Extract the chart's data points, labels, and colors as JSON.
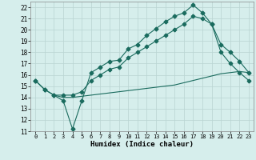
{
  "title": "",
  "xlabel": "Humidex (Indice chaleur)",
  "ylabel": "",
  "bg_color": "#d6eeec",
  "line_color": "#1a6b5e",
  "grid_color": "#b8d4d2",
  "xlim": [
    -0.5,
    23.5
  ],
  "ylim": [
    11,
    22.5
  ],
  "yticks": [
    11,
    12,
    13,
    14,
    15,
    16,
    17,
    18,
    19,
    20,
    21,
    22
  ],
  "xticks": [
    0,
    1,
    2,
    3,
    4,
    5,
    6,
    7,
    8,
    9,
    10,
    11,
    12,
    13,
    14,
    15,
    16,
    17,
    18,
    19,
    20,
    21,
    22,
    23
  ],
  "series": [
    {
      "x": [
        0,
        1,
        2,
        3,
        4,
        5,
        6,
        7,
        8,
        9,
        10,
        11,
        12,
        13,
        14,
        15,
        16,
        17,
        18,
        19,
        20,
        21,
        22,
        23
      ],
      "y": [
        15.5,
        14.7,
        14.2,
        13.7,
        11.2,
        13.7,
        16.2,
        16.7,
        17.2,
        17.3,
        18.3,
        18.7,
        19.5,
        20.1,
        20.7,
        21.2,
        21.5,
        22.2,
        21.5,
        20.5,
        18.7,
        18.0,
        17.2,
        16.2
      ],
      "marker": "D",
      "markersize": 2.5,
      "linewidth": 0.8
    },
    {
      "x": [
        0,
        1,
        2,
        3,
        4,
        5,
        6,
        7,
        8,
        9,
        10,
        11,
        12,
        13,
        14,
        15,
        16,
        17,
        18,
        19,
        20,
        21,
        22,
        23
      ],
      "y": [
        15.5,
        14.7,
        14.2,
        14.2,
        14.2,
        14.5,
        15.5,
        16.0,
        16.5,
        16.7,
        17.5,
        18.0,
        18.5,
        19.0,
        19.5,
        20.0,
        20.5,
        21.2,
        21.0,
        20.5,
        18.0,
        17.0,
        16.2,
        15.5
      ],
      "marker": "P",
      "markersize": 3.0,
      "linewidth": 0.8
    },
    {
      "x": [
        2,
        3,
        4,
        5,
        6,
        7,
        8,
        9,
        10,
        11,
        12,
        13,
        14,
        15,
        16,
        17,
        18,
        19,
        20,
        21,
        22,
        23
      ],
      "y": [
        14.2,
        14.0,
        14.0,
        14.1,
        14.2,
        14.3,
        14.4,
        14.5,
        14.6,
        14.7,
        14.8,
        14.9,
        15.0,
        15.1,
        15.3,
        15.5,
        15.7,
        15.9,
        16.1,
        16.2,
        16.3,
        16.2
      ],
      "marker": null,
      "markersize": 0,
      "linewidth": 0.8
    }
  ]
}
